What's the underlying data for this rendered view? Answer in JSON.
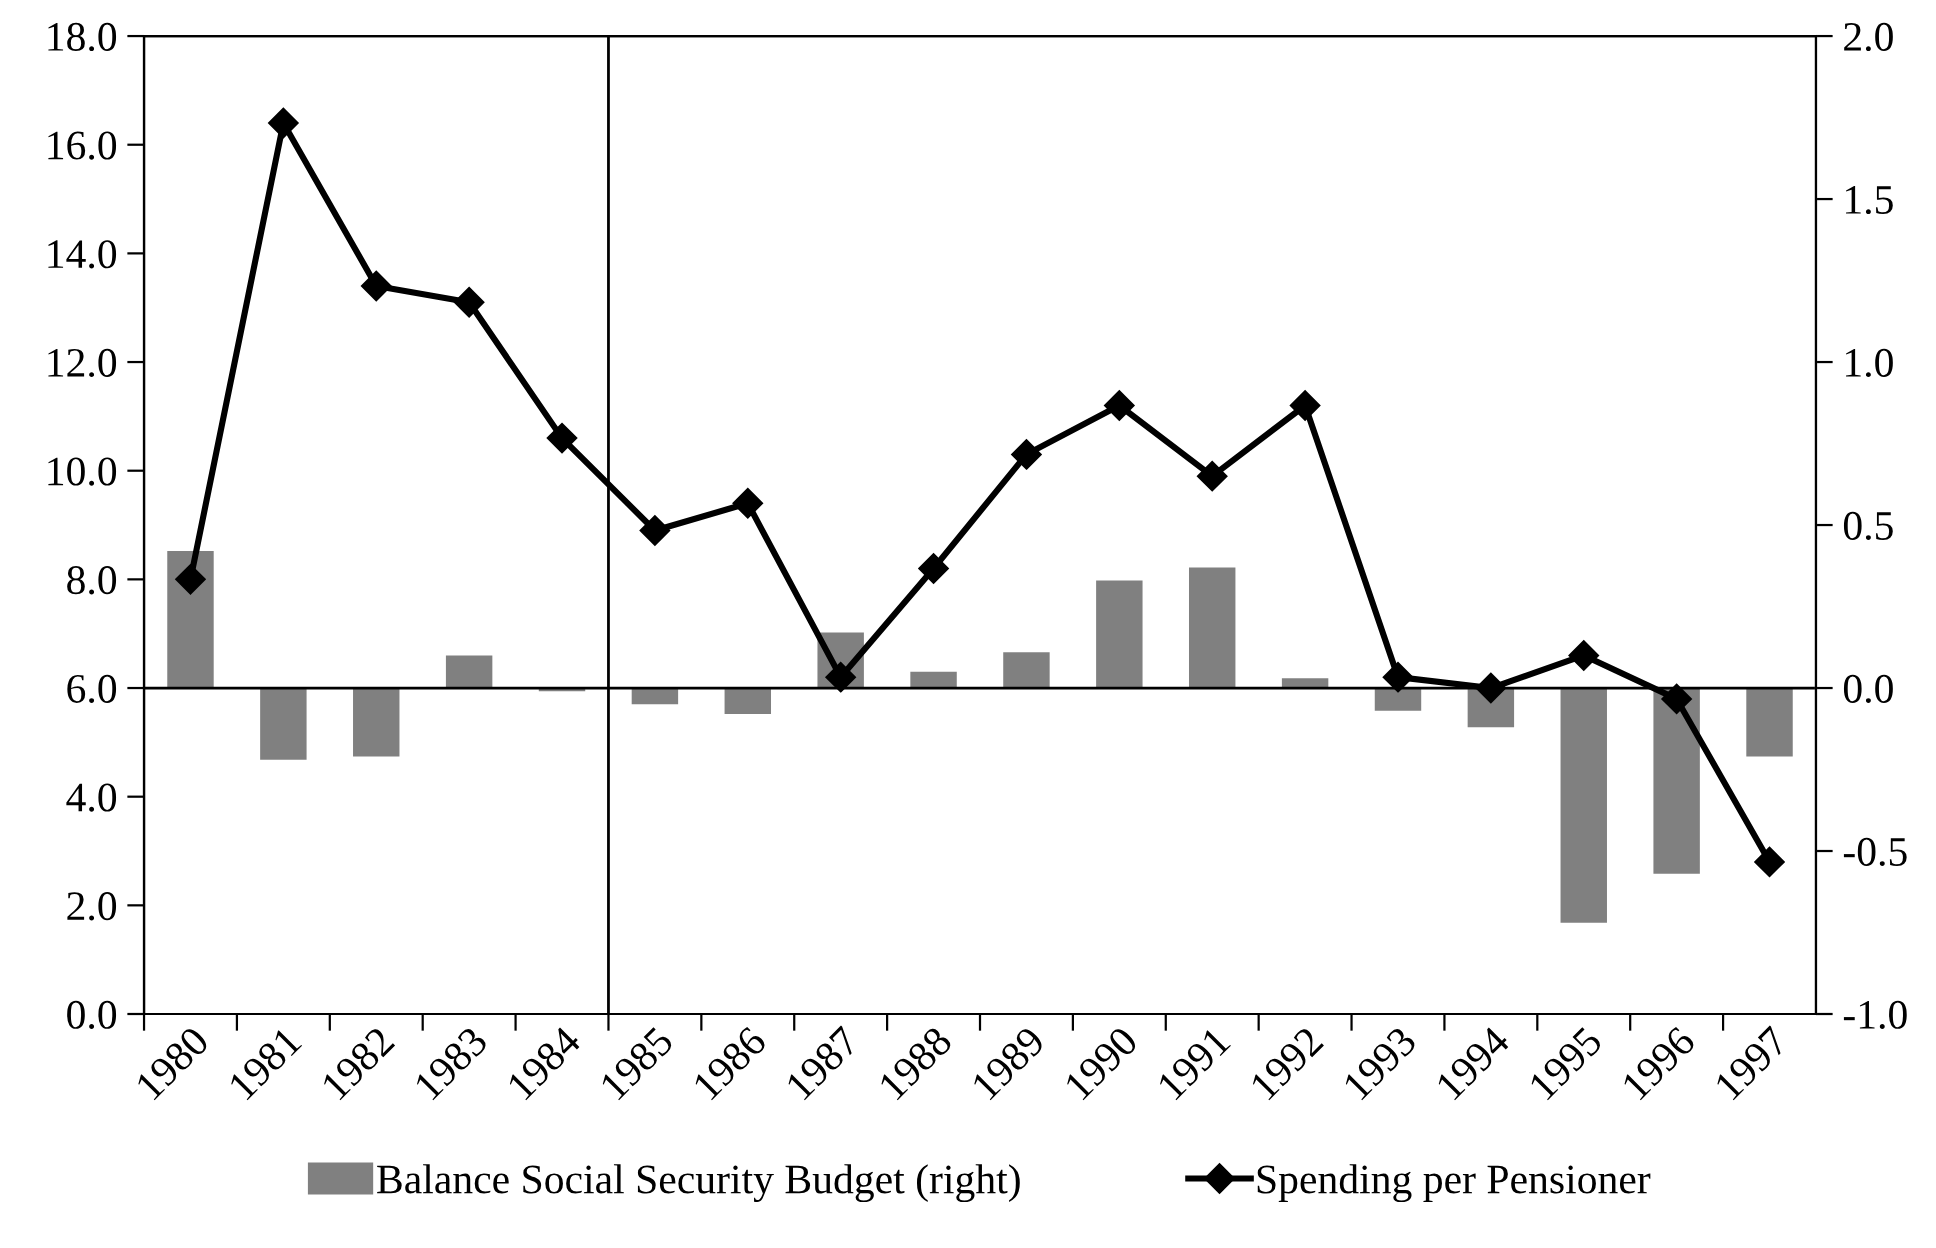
{
  "chart_data": {
    "type": "bar",
    "categories": [
      "1980",
      "1981",
      "1982",
      "1983",
      "1984",
      "1985",
      "1986",
      "1987",
      "1988",
      "1989",
      "1990",
      "1991",
      "1992",
      "1993",
      "1994",
      "1995",
      "1996",
      "1997"
    ],
    "series": [
      {
        "name": "Balance Social Security Budget (right)",
        "axis": "y2",
        "color": "#808080",
        "values": [
          0.42,
          -0.22,
          -0.21,
          0.1,
          -0.01,
          -0.05,
          -0.08,
          0.17,
          0.05,
          0.11,
          0.33,
          0.37,
          0.03,
          -0.07,
          -0.12,
          -0.72,
          -0.57,
          -0.21
        ]
      },
      {
        "name": "Spending per Pensioner",
        "type": "line",
        "color": "#000000",
        "marker": "diamond",
        "line_style": "solid",
        "values": [
          8.0,
          16.4,
          13.4,
          13.1,
          10.6,
          8.9,
          9.4,
          6.2,
          8.2,
          10.3,
          11.2,
          9.9,
          11.2,
          6.2,
          6.0,
          6.6,
          5.8,
          2.8
        ]
      }
    ],
    "ylim": [
      0,
      18
    ],
    "yticks": [
      {
        "value": 0,
        "label": "0.0"
      },
      {
        "value": 2,
        "label": "2.0"
      },
      {
        "value": 4,
        "label": "4.0"
      },
      {
        "value": 6,
        "label": "6.0"
      },
      {
        "value": 8,
        "label": "8.0"
      },
      {
        "value": 10,
        "label": "10.0"
      },
      {
        "value": 12,
        "label": "12.0"
      },
      {
        "value": 14,
        "label": "14.0"
      },
      {
        "value": 16,
        "label": "16.0"
      },
      {
        "value": 18,
        "label": "18.0"
      }
    ],
    "y2lim": [
      -1,
      2
    ],
    "y2ticks": [
      {
        "value": -1,
        "label": "-1.0"
      },
      {
        "value": -0.5,
        "label": "-0.5"
      },
      {
        "value": 0,
        "label": "0.0"
      },
      {
        "value": 0.5,
        "label": "0.5"
      },
      {
        "value": 1,
        "label": "1.0"
      },
      {
        "value": 1.5,
        "label": "1.5"
      },
      {
        "value": 2,
        "label": "2.0"
      }
    ],
    "ref_lines": [
      {
        "axis": "y2",
        "value": 0,
        "color": "#000000"
      }
    ],
    "grid": false,
    "legend": "bottom"
  }
}
